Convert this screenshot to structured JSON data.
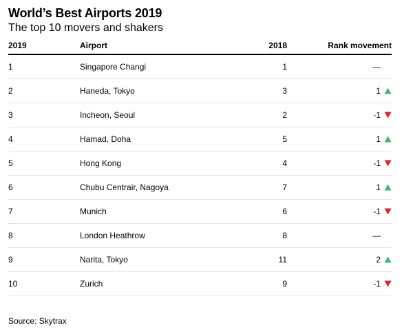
{
  "chart_data": {
    "type": "table",
    "title": "World’s Best Airports 2019",
    "subtitle": "The top 10 movers and shakers",
    "columns": [
      "2019",
      "Airport",
      "2018",
      "Rank movement"
    ],
    "rows": [
      {
        "rank_2019": "1",
        "airport": "Singapore Changi",
        "rank_2018": "1",
        "movement": "—",
        "direction": "none"
      },
      {
        "rank_2019": "2",
        "airport": "Haneda, Tokyo",
        "rank_2018": "3",
        "movement": "1",
        "direction": "up"
      },
      {
        "rank_2019": "3",
        "airport": "Incheon, Seoul",
        "rank_2018": "2",
        "movement": "-1",
        "direction": "down"
      },
      {
        "rank_2019": "4",
        "airport": "Hamad, Doha",
        "rank_2018": "5",
        "movement": "1",
        "direction": "up"
      },
      {
        "rank_2019": "5",
        "airport": "Hong Kong",
        "rank_2018": "4",
        "movement": "-1",
        "direction": "down"
      },
      {
        "rank_2019": "6",
        "airport": "Chubu Centrair, Nagoya",
        "rank_2018": "7",
        "movement": "1",
        "direction": "up"
      },
      {
        "rank_2019": "7",
        "airport": "Munich",
        "rank_2018": "6",
        "movement": "-1",
        "direction": "down"
      },
      {
        "rank_2019": "8",
        "airport": "London Heathrow",
        "rank_2018": "8",
        "movement": "—",
        "direction": "none"
      },
      {
        "rank_2019": "9",
        "airport": "Narita, Tokyo",
        "rank_2018": "11",
        "movement": "2",
        "direction": "up"
      },
      {
        "rank_2019": "10",
        "airport": "Zurich",
        "rank_2018": "9",
        "movement": "-1",
        "direction": "down"
      }
    ],
    "source": "Source: Skytrax",
    "colors": {
      "up": "#3dba6f",
      "down": "#e0242b",
      "rule": "#000000",
      "divider": "#e3e3e3"
    },
    "icons": {
      "up": "up-triangle-icon",
      "down": "down-triangle-icon"
    }
  }
}
